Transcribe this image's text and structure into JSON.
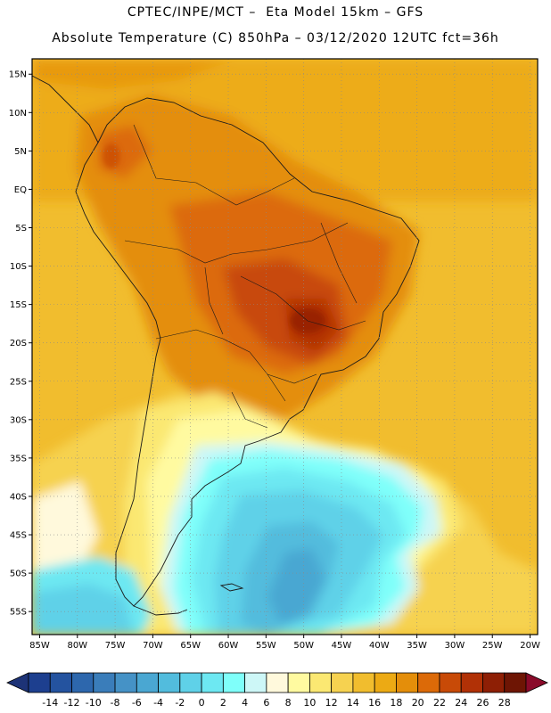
{
  "header": {
    "line1": "CPTEC/INPE/MCT –  Eta Model 15km – GFS",
    "line2": "Absolute Temperature (C) 850hPa – 03/12/2020 12UTC fct=36h"
  },
  "map": {
    "lat_labels": [
      "15N",
      "10N",
      "5N",
      "EQ",
      "5S",
      "10S",
      "15S",
      "20S",
      "25S",
      "30S",
      "35S",
      "40S",
      "45S",
      "50S",
      "55S"
    ],
    "lat_values": [
      15,
      10,
      5,
      0,
      -5,
      -10,
      -15,
      -20,
      -25,
      -30,
      -35,
      -40,
      -45,
      -50,
      -55
    ],
    "lon_labels": [
      "85W",
      "80W",
      "75W",
      "70W",
      "65W",
      "60W",
      "55W",
      "50W",
      "45W",
      "40W",
      "35W",
      "30W",
      "25W",
      "20W"
    ],
    "lon_values": [
      -85,
      -80,
      -75,
      -70,
      -65,
      -60,
      -55,
      -50,
      -45,
      -40,
      -35,
      -30,
      -25,
      -20
    ],
    "lat_range": [
      -58,
      17
    ],
    "lon_range": [
      -86,
      -19
    ],
    "gridlines": true
  },
  "colorbar": {
    "labels": [
      "-14",
      "-12",
      "-10",
      "-8",
      "-6",
      "-4",
      "-2",
      "0",
      "2",
      "4",
      "6",
      "8",
      "10",
      "12",
      "14",
      "16",
      "18",
      "20",
      "22",
      "24",
      "26",
      "28"
    ],
    "colors": [
      "#1d3f8f",
      "#24539f",
      "#2d67ad",
      "#3a7dba",
      "#4592c6",
      "#4aa7d2",
      "#52bcdd",
      "#5fd1e8",
      "#6de8f2",
      "#7ffffa",
      "#cdf7f7",
      "#fff9dc",
      "#fffaa0",
      "#fbe872",
      "#f6d250",
      "#f1bd2e",
      "#ecaa14",
      "#e48e0a",
      "#dc6a08",
      "#c84a07",
      "#b13106",
      "#8e1f05",
      "#6e1504"
    ],
    "low_color": "#1d3377",
    "high_color": "#8a0a2a"
  },
  "colors": {
    "land_outline": "#1a1a1a",
    "grid": "#8a8a8a"
  }
}
